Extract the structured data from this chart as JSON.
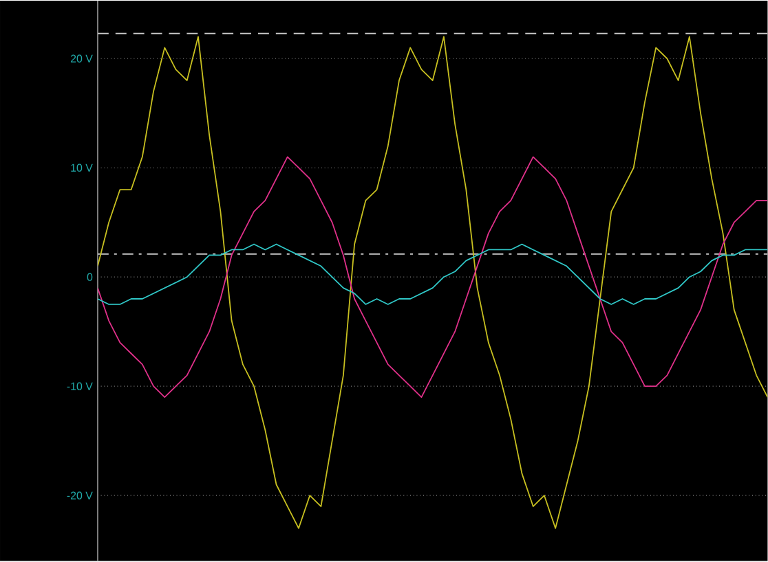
{
  "chart_data": {
    "type": "line",
    "categories": [
      null,
      null,
      null,
      null,
      null,
      null,
      null,
      null,
      null,
      null,
      null,
      null,
      null,
      null,
      null,
      null,
      null,
      null,
      null,
      null,
      null,
      null,
      null,
      null,
      null,
      null,
      null,
      null,
      null,
      null,
      null,
      null,
      null,
      null,
      null,
      null,
      null,
      null,
      null,
      null,
      null,
      null,
      null,
      null,
      null,
      null,
      null,
      null,
      null,
      null,
      null,
      null,
      null,
      null,
      null,
      null,
      null,
      null,
      null,
      null,
      null
    ],
    "series": [
      {
        "color": "#c8c020",
        "values": [
          1,
          5,
          8,
          8,
          11,
          17,
          21,
          19,
          18,
          22,
          13,
          6,
          -4,
          -8,
          -10,
          -14,
          -19,
          -21,
          -23,
          -20,
          -21,
          -15,
          -9,
          3,
          7,
          8,
          12,
          18,
          21,
          19,
          18,
          22,
          14,
          8,
          -1,
          -6,
          -9,
          -13,
          -18,
          -21,
          -20,
          -23,
          -19,
          -15,
          -10,
          -2,
          6,
          8,
          10,
          16,
          21,
          20,
          18,
          22,
          15,
          9,
          4,
          -3,
          -6,
          -9,
          -11
        ]
      },
      {
        "color": "#e0308a",
        "values": [
          -1,
          -4,
          -6,
          -7,
          -8,
          -10,
          -11,
          -10,
          -9,
          -7,
          -5,
          -2,
          2,
          4,
          6,
          7,
          9,
          11,
          10,
          9,
          7,
          5,
          2,
          -2,
          -4,
          -6,
          -8,
          -9,
          -10,
          -11,
          -9,
          -7,
          -5,
          -2,
          1,
          4,
          6,
          7,
          9,
          11,
          10,
          9,
          7,
          4,
          1,
          -2,
          -5,
          -6,
          -8,
          -10,
          -10,
          -9,
          -7,
          -5,
          -3,
          0,
          3,
          5,
          6,
          7,
          7
        ]
      },
      {
        "color": "#30c8c8",
        "values": [
          -2,
          -2.5,
          -2.5,
          -2,
          -2,
          -1.5,
          -1,
          -0.5,
          0,
          1,
          2,
          2,
          2.5,
          2.5,
          3,
          2.5,
          3,
          2.5,
          2,
          1.5,
          1,
          0,
          -1,
          -1.5,
          -2.5,
          -2,
          -2.5,
          -2,
          -2,
          -1.5,
          -1,
          0,
          0.5,
          1.5,
          2,
          2.5,
          2.5,
          2.5,
          3,
          2.5,
          2,
          1.5,
          1,
          0,
          -1,
          -2,
          -2.5,
          -2,
          -2.5,
          -2,
          -2,
          -1.5,
          -1,
          0,
          0.5,
          1.5,
          2,
          2,
          2.5,
          2.5,
          2.5
        ]
      }
    ],
    "ylim": [
      -26,
      25.3
    ],
    "yticks": [
      {
        "value": 20,
        "label": "20 V"
      },
      {
        "value": 10,
        "label": "10 V"
      },
      0,
      {
        "value": -10,
        "label": "-10 V"
      },
      {
        "value": -20,
        "label": "-20 V"
      }
    ],
    "grid": "y",
    "ref_lines": [
      {
        "axis": "y",
        "value": 22.3,
        "color": "#c8c8c8",
        "line_style": "dashed"
      },
      {
        "axis": "y",
        "value": 2.1,
        "color": "#c8c8c8",
        "line_style": "dashdot"
      }
    ]
  }
}
